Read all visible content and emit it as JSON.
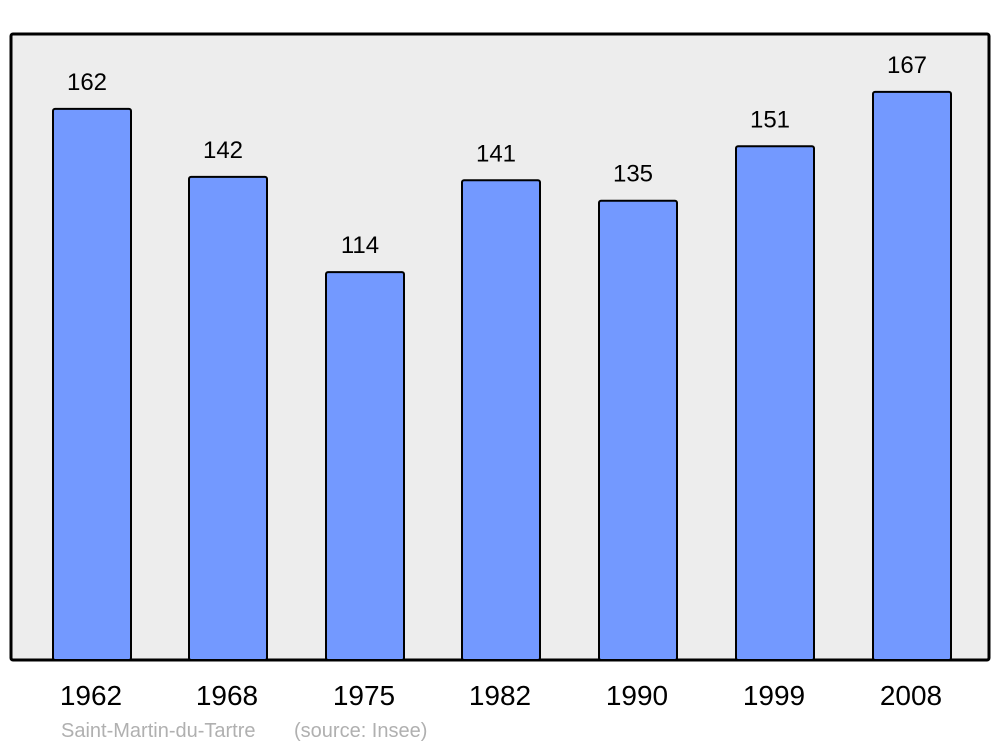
{
  "chart_data": {
    "type": "bar",
    "categories": [
      "1962",
      "1968",
      "1975",
      "1982",
      "1990",
      "1999",
      "2008"
    ],
    "values": [
      162,
      142,
      114,
      141,
      135,
      151,
      167
    ],
    "title": "",
    "xlabel": "",
    "ylabel": "",
    "ylim": [
      0,
      184
    ],
    "grid": false,
    "data_labels": true,
    "colors": {
      "bar": "#7399ff",
      "background": "#ededed",
      "border": "#000000"
    }
  },
  "caption": {
    "place": "Saint-Martin-du-Tartre",
    "source": "(source: Insee)"
  }
}
